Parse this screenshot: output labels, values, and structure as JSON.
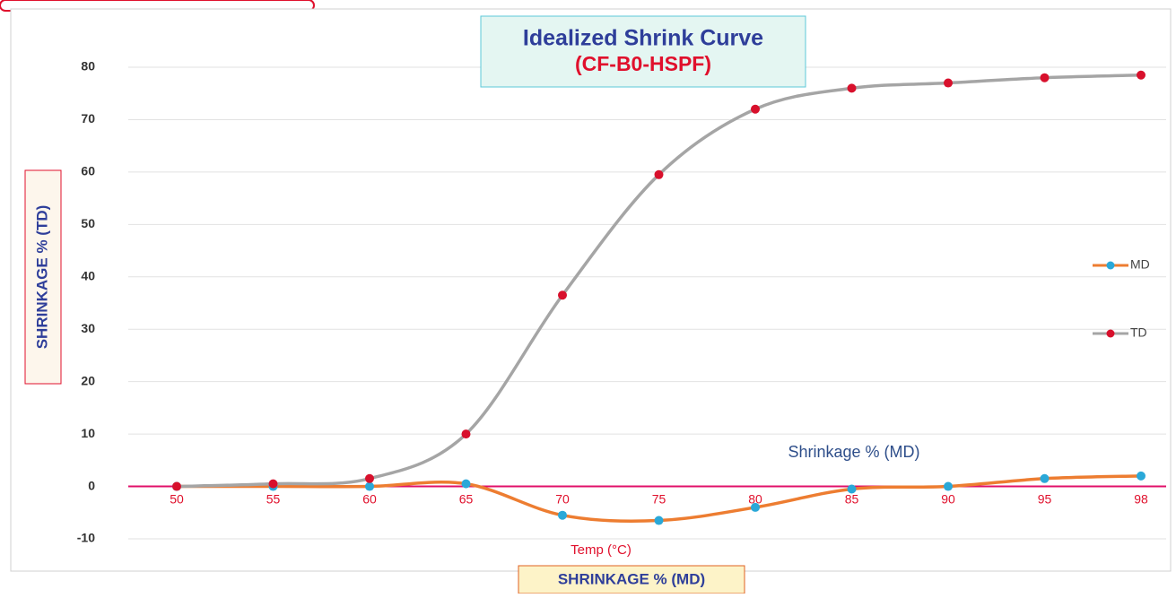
{
  "chart_data": {
    "type": "line",
    "title": "Idealized Shrink Curve",
    "subtitle": "(CF-B0-HSPF)",
    "x_label": "Temp (°C)",
    "y_label": "SHRINKAGE % (TD)",
    "x_label_box": "SHRINKAGE % (MD)",
    "annotation": "Shrinkage % (MD)",
    "categories": [
      "50",
      "55",
      "60",
      "65",
      "70",
      "75",
      "80",
      "85",
      "90",
      "95",
      "98"
    ],
    "series": [
      {
        "name": "MD",
        "color": "#ed7d31",
        "marker_color": "#2aa8d8",
        "values": [
          0,
          0,
          0,
          0.5,
          -5.5,
          -6.5,
          -4,
          -0.5,
          0,
          1.5,
          2
        ]
      },
      {
        "name": "TD",
        "color": "#a5a5a5",
        "marker_color": "#d8102c",
        "values": [
          0,
          0.5,
          1.5,
          10,
          36.5,
          59.5,
          72,
          76,
          77,
          78,
          78.5
        ]
      }
    ],
    "ylim": [
      -10,
      80
    ],
    "yticks": [
      -10,
      0,
      10,
      20,
      30,
      40,
      50,
      60,
      70,
      80
    ],
    "grid": true,
    "legend": "right",
    "smooth": true
  }
}
